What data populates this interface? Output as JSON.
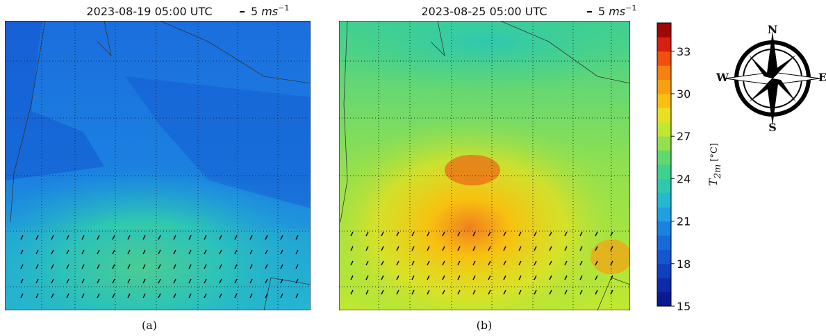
{
  "panels": [
    {
      "title": "2023-08-19 05:00 UTC",
      "quiver_value": 5,
      "quiver_unit": "ms",
      "quiver_exponent": "−1",
      "caption": "(a)"
    },
    {
      "title": "2023-08-25 05:00 UTC",
      "quiver_value": 5,
      "quiver_unit": "ms",
      "quiver_exponent": "−1",
      "caption": "(b)"
    }
  ],
  "colorbar": {
    "lim": [
      15,
      35
    ],
    "ticks": [
      15,
      18,
      21,
      24,
      27,
      30,
      33
    ],
    "label": "T",
    "label_sub": "2m",
    "label_unit": "[°C]",
    "colors": [
      "#0a1a8f",
      "#0d2aa8",
      "#1040c0",
      "#1356d0",
      "#176ad8",
      "#1b82e0",
      "#20a0e0",
      "#25b8d0",
      "#2ec8b0",
      "#40d090",
      "#60d870",
      "#90e050",
      "#c0e830",
      "#e8e020",
      "#f8c010",
      "#f8a010",
      "#f88010",
      "#f05010",
      "#d82010",
      "#a00808"
    ]
  },
  "compass": {
    "n": "N",
    "e": "E",
    "s": "S",
    "w": "W"
  }
}
